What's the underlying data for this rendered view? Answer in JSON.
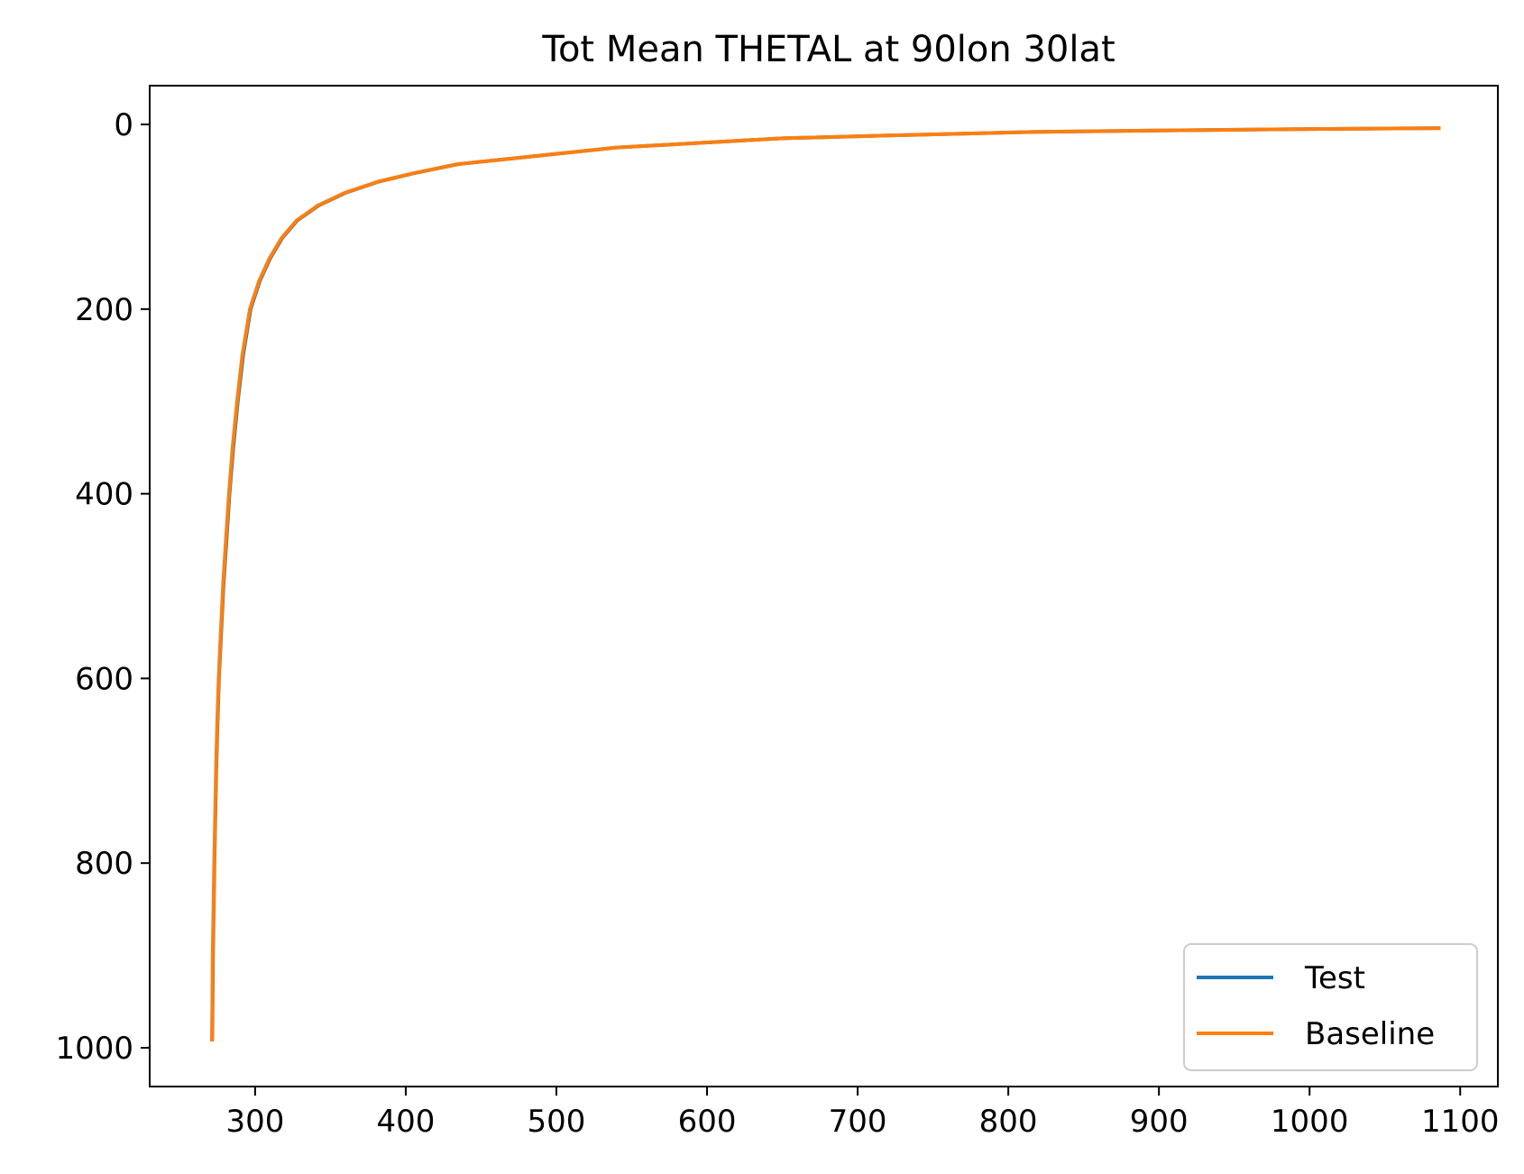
{
  "chart_data": {
    "type": "line",
    "title": "Tot Mean THETAL at 90lon 30lat",
    "xlabel": "",
    "ylabel": "",
    "xlim": [
      230,
      1125
    ],
    "ylim": [
      1042,
      -42
    ],
    "y_inverted": true,
    "xticks": [
      300,
      400,
      500,
      600,
      700,
      800,
      900,
      1000,
      1100
    ],
    "yticks": [
      0,
      200,
      400,
      600,
      800,
      1000
    ],
    "grid": false,
    "legend_position": "lower-right",
    "series": [
      {
        "name": "Test",
        "color": "#1f77b4",
        "points": [
          [
            271.5,
            993
          ],
          [
            271.8,
            950
          ],
          [
            272.0,
            900
          ],
          [
            272.5,
            850
          ],
          [
            273.0,
            800
          ],
          [
            273.6,
            750
          ],
          [
            274.2,
            700
          ],
          [
            275.0,
            650
          ],
          [
            276.0,
            600
          ],
          [
            277.5,
            550
          ],
          [
            279.0,
            500
          ],
          [
            281.0,
            450
          ],
          [
            283.0,
            400
          ],
          [
            285.5,
            350
          ],
          [
            288.5,
            300
          ],
          [
            292.0,
            250
          ],
          [
            297.0,
            200
          ],
          [
            303.0,
            170
          ],
          [
            310.0,
            145
          ],
          [
            318.0,
            123
          ],
          [
            328.0,
            104
          ],
          [
            342.0,
            88
          ],
          [
            360.0,
            74
          ],
          [
            382.0,
            62
          ],
          [
            405.0,
            53
          ],
          [
            435.0,
            43
          ],
          [
            470.0,
            37
          ],
          [
            505.0,
            31
          ],
          [
            540.0,
            25
          ],
          [
            595.0,
            20
          ],
          [
            650.0,
            15
          ],
          [
            720.0,
            12
          ],
          [
            820.0,
            8
          ],
          [
            930.0,
            6
          ],
          [
            1000.0,
            5
          ],
          [
            1087.0,
            4
          ]
        ]
      },
      {
        "name": "Baseline",
        "color": "#ff7f0e",
        "points": [
          [
            271.3,
            993
          ],
          [
            271.6,
            950
          ],
          [
            271.8,
            900
          ],
          [
            272.3,
            850
          ],
          [
            272.8,
            800
          ],
          [
            273.4,
            750
          ],
          [
            274.0,
            700
          ],
          [
            274.8,
            650
          ],
          [
            275.8,
            600
          ],
          [
            277.2,
            550
          ],
          [
            278.7,
            500
          ],
          [
            280.6,
            450
          ],
          [
            282.6,
            400
          ],
          [
            285.0,
            350
          ],
          [
            288.0,
            300
          ],
          [
            291.5,
            250
          ],
          [
            296.5,
            200
          ],
          [
            302.5,
            170
          ],
          [
            309.5,
            145
          ],
          [
            317.5,
            123
          ],
          [
            327.5,
            104
          ],
          [
            341.5,
            88
          ],
          [
            359.5,
            74
          ],
          [
            381.5,
            62
          ],
          [
            404.5,
            53
          ],
          [
            434.5,
            43
          ],
          [
            470.0,
            37
          ],
          [
            505.0,
            31
          ],
          [
            540.0,
            25
          ],
          [
            595.0,
            20
          ],
          [
            650.0,
            15
          ],
          [
            720.0,
            12
          ],
          [
            820.0,
            8
          ],
          [
            930.0,
            6
          ],
          [
            1000.0,
            5
          ],
          [
            1087.0,
            4
          ]
        ]
      }
    ]
  }
}
